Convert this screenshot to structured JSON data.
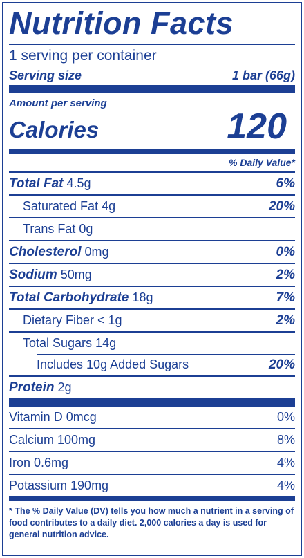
{
  "title": "Nutrition Facts",
  "servings_per_container": "1 serving per container",
  "serving_size": {
    "label": "Serving size",
    "value": "1 bar (66g)"
  },
  "amount_per_serving": "Amount per serving",
  "calories": {
    "label": "Calories",
    "value": "120"
  },
  "daily_value_header": "% Daily Value*",
  "nutrients": [
    {
      "name": "Total Fat",
      "amount": "4.5g",
      "dv": "6%"
    },
    {
      "name": "Saturated Fat 4g",
      "amount": "",
      "dv": "20%"
    },
    {
      "name": "Trans Fat 0g",
      "amount": "",
      "dv": ""
    },
    {
      "name": "Cholesterol",
      "amount": "0mg",
      "dv": "0%"
    },
    {
      "name": "Sodium",
      "amount": "50mg",
      "dv": "2%"
    },
    {
      "name": "Total Carbohydrate",
      "amount": "18g",
      "dv": "7%"
    },
    {
      "name": "Dietary Fiber < 1g",
      "amount": "",
      "dv": "2%"
    },
    {
      "name": "Total Sugars 14g",
      "amount": "",
      "dv": ""
    },
    {
      "name": "Includes 10g Added Sugars",
      "amount": "",
      "dv": "20%"
    },
    {
      "name": "Protein",
      "amount": "2g",
      "dv": ""
    }
  ],
  "vitamins": [
    {
      "name": "Vitamin D 0mcg",
      "dv": "0%"
    },
    {
      "name": "Calcium 100mg",
      "dv": "8%"
    },
    {
      "name": "Iron 0.6mg",
      "dv": "4%"
    },
    {
      "name": "Potassium 190mg",
      "dv": "4%"
    }
  ],
  "footnote": {
    "lead": "* The % Daily Value (DV) ",
    "rest": "tells you how much a nutrient in a serving of food contributes to a daily diet. 2,000 calories a day is used for general nutrition advice."
  }
}
